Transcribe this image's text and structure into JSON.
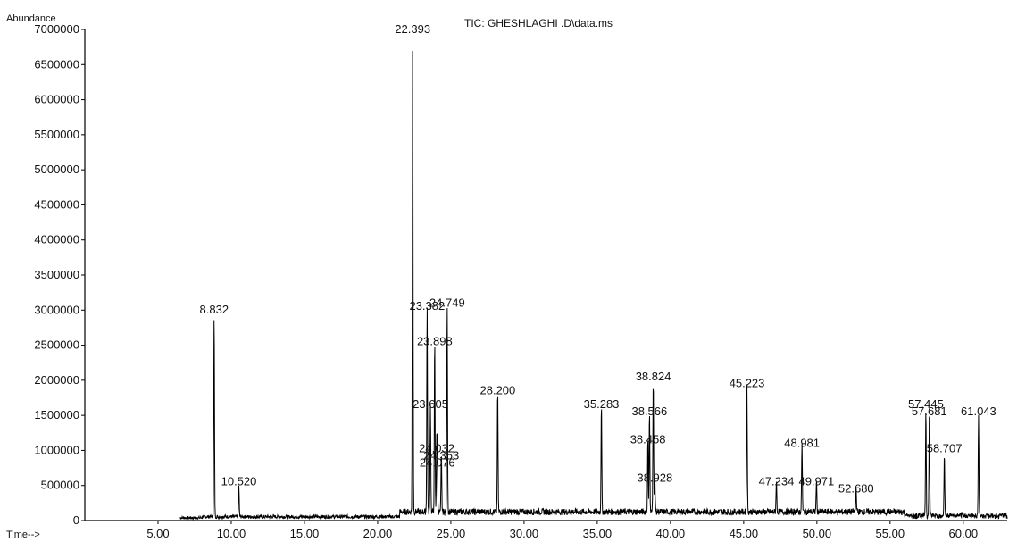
{
  "chart_data": {
    "type": "line",
    "title": "TIC: GHESHLAGHI .D\\data.ms",
    "ylabel": "Abundance",
    "xlabel": "Time-->",
    "xlim": [
      0,
      63
    ],
    "ylim": [
      0,
      7000000
    ],
    "x_ticks": [
      5,
      10,
      15,
      20,
      25,
      30,
      35,
      40,
      45,
      50,
      55,
      60
    ],
    "x_tick_labels": [
      "5.00",
      "10.00",
      "15.00",
      "20.00",
      "25.00",
      "30.00",
      "35.00",
      "40.00",
      "45.00",
      "50.00",
      "55.00",
      "60.00"
    ],
    "y_ticks": [
      0,
      500000,
      1000000,
      1500000,
      2000000,
      2500000,
      3000000,
      3500000,
      4000000,
      4500000,
      5000000,
      5500000,
      6000000,
      6500000,
      7000000
    ],
    "y_tick_labels": [
      "0",
      "500000",
      "1000000",
      "1500000",
      "2000000",
      "2500000",
      "3000000",
      "3500000",
      "4000000",
      "4500000",
      "5000000",
      "5500000",
      "6000000",
      "6500000",
      "7000000"
    ],
    "series": [
      {
        "peaks": [
          {
            "x": 8.832,
            "y": 2900000,
            "label": "8.832"
          },
          {
            "x": 10.52,
            "y": 450000,
            "label": "10.520"
          },
          {
            "x": 22.393,
            "y": 6900000,
            "label": "22.393"
          },
          {
            "x": 23.38,
            "y": 2950000,
            "label": "23.382"
          },
          {
            "x": 24.749,
            "y": 3000000,
            "label": "24.749"
          },
          {
            "x": 23.898,
            "y": 2450000,
            "label": "23.898"
          },
          {
            "x": 23.605,
            "y": 1550000,
            "label": "23.605"
          },
          {
            "x": 24.032,
            "y": 920000,
            "label": "24.032"
          },
          {
            "x": 24.353,
            "y": 820000,
            "label": "24.353"
          },
          {
            "x": 24.076,
            "y": 720000,
            "label": "24.076"
          },
          {
            "x": 28.2,
            "y": 1750000,
            "label": "28.200"
          },
          {
            "x": 35.283,
            "y": 1550000,
            "label": "35.283"
          },
          {
            "x": 38.824,
            "y": 1950000,
            "label": "38.824"
          },
          {
            "x": 38.566,
            "y": 1450000,
            "label": "38.566"
          },
          {
            "x": 38.458,
            "y": 1050000,
            "label": "38.458"
          },
          {
            "x": 38.928,
            "y": 500000,
            "label": "38.928"
          },
          {
            "x": 45.223,
            "y": 1850000,
            "label": "45.223"
          },
          {
            "x": 48.981,
            "y": 1000000,
            "label": "48.981"
          },
          {
            "x": 47.234,
            "y": 450000,
            "label": "47.234"
          },
          {
            "x": 49.971,
            "y": 450000,
            "label": "49.971"
          },
          {
            "x": 52.68,
            "y": 350000,
            "label": "52.680"
          },
          {
            "x": 57.445,
            "y": 1550000,
            "label": "57.445"
          },
          {
            "x": 57.681,
            "y": 1450000,
            "label": "57.681"
          },
          {
            "x": 58.707,
            "y": 920000,
            "label": "58.707"
          },
          {
            "x": 61.043,
            "y": 1450000,
            "label": "61.043"
          }
        ]
      }
    ]
  }
}
